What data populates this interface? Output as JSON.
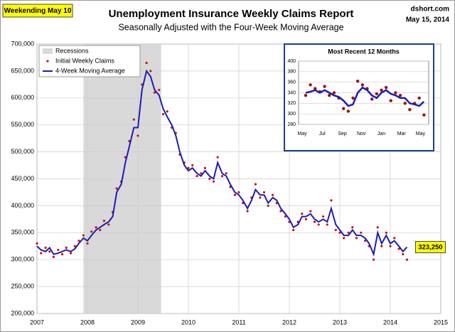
{
  "chart_data": [
    {
      "type": "line",
      "title": "Unemployment Insurance Weekly Claims Report",
      "subtitle": "Seasonally Adjusted with the Four-Week Moving Average",
      "annotations": [
        "Weekending May 10",
        "dshort.com",
        "May 15, 2014"
      ],
      "last_value_label": "323,250",
      "recessions": {
        "name": "Recessions",
        "color": "#d9d9d9",
        "spans": [
          [
            2007.92,
            2009.46
          ]
        ]
      },
      "x": [
        2007,
        2007.08,
        2007.17,
        2007.25,
        2007.33,
        2007.42,
        2007.5,
        2007.58,
        2007.67,
        2007.75,
        2007.83,
        2007.92,
        2008,
        2008.08,
        2008.17,
        2008.25,
        2008.33,
        2008.42,
        2008.5,
        2008.58,
        2008.67,
        2008.75,
        2008.83,
        2008.92,
        2009,
        2009.08,
        2009.17,
        2009.25,
        2009.33,
        2009.42,
        2009.5,
        2009.58,
        2009.67,
        2009.75,
        2009.83,
        2009.92,
        2010,
        2010.08,
        2010.17,
        2010.25,
        2010.33,
        2010.42,
        2010.5,
        2010.58,
        2010.67,
        2010.75,
        2010.83,
        2010.92,
        2011,
        2011.08,
        2011.17,
        2011.25,
        2011.33,
        2011.42,
        2011.5,
        2011.58,
        2011.67,
        2011.75,
        2011.83,
        2011.92,
        2012,
        2012.08,
        2012.17,
        2012.25,
        2012.33,
        2012.42,
        2012.5,
        2012.58,
        2012.67,
        2012.75,
        2012.83,
        2012.92,
        2013,
        2013.08,
        2013.17,
        2013.25,
        2013.33,
        2013.42,
        2013.5,
        2013.58,
        2013.67,
        2013.75,
        2013.83,
        2013.92,
        2014,
        2014.08,
        2014.17,
        2014.25,
        2014.33
      ],
      "series": [
        {
          "name": "Initial Weekly Claims",
          "style": "dots",
          "color": "#cc1010",
          "values": [
            330000,
            312000,
            322000,
            315000,
            305000,
            318000,
            310000,
            322000,
            312000,
            325000,
            335000,
            345000,
            330000,
            352000,
            360000,
            355000,
            372000,
            365000,
            388000,
            432000,
            445000,
            490000,
            520000,
            560000,
            530000,
            625000,
            665000,
            650000,
            610000,
            615000,
            570000,
            575000,
            545000,
            535000,
            495000,
            480000,
            470000,
            475000,
            455000,
            460000,
            470000,
            450000,
            445000,
            490000,
            455000,
            460000,
            435000,
            420000,
            425000,
            405000,
            390000,
            415000,
            440000,
            415000,
            425000,
            400000,
            420000,
            405000,
            390000,
            380000,
            370000,
            355000,
            370000,
            385000,
            375000,
            390000,
            370000,
            365000,
            380000,
            365000,
            410000,
            355000,
            350000,
            340000,
            350000,
            360000,
            340000,
            350000,
            335000,
            325000,
            300000,
            360000,
            325000,
            350000,
            325000,
            340000,
            320000,
            310000,
            300000
          ]
        },
        {
          "name": "4-Week Moving Average",
          "style": "line",
          "color": "#1c1cb8",
          "values": [
            325000,
            318000,
            315000,
            322000,
            310000,
            312000,
            315000,
            318000,
            315000,
            320000,
            330000,
            340000,
            335000,
            345000,
            355000,
            360000,
            365000,
            370000,
            380000,
            425000,
            440000,
            480000,
            510000,
            545000,
            545000,
            615000,
            650000,
            640000,
            615000,
            605000,
            580000,
            565000,
            550000,
            530000,
            500000,
            475000,
            465000,
            470000,
            460000,
            455000,
            465000,
            455000,
            450000,
            480000,
            460000,
            455000,
            440000,
            425000,
            420000,
            410000,
            395000,
            410000,
            430000,
            420000,
            420000,
            405000,
            415000,
            410000,
            395000,
            385000,
            375000,
            360000,
            365000,
            380000,
            380000,
            385000,
            375000,
            370000,
            375000,
            370000,
            395000,
            365000,
            355000,
            345000,
            345000,
            355000,
            345000,
            345000,
            340000,
            330000,
            310000,
            350000,
            330000,
            345000,
            330000,
            335000,
            325000,
            315000,
            323250
          ]
        }
      ],
      "legend_items": [
        "Recessions",
        "Initial Weekly Claims",
        "4-Week Moving Average"
      ],
      "xlim": [
        2007,
        2015
      ],
      "xticks": [
        2007,
        2008,
        2009,
        2010,
        2011,
        2012,
        2013,
        2014,
        2015
      ],
      "ylim": [
        200000,
        700000
      ],
      "yticks": [
        {
          "value": 200000,
          "label": "200,000"
        },
        {
          "value": 250000,
          "label": "250,000"
        },
        {
          "value": 300000,
          "label": "300,000"
        },
        {
          "value": 350000,
          "label": "350,000"
        },
        {
          "value": 400000,
          "label": "400,000"
        },
        {
          "value": 450000,
          "label": "450,000"
        },
        {
          "value": 500000,
          "label": "500,000"
        },
        {
          "value": 550000,
          "label": "550,000"
        },
        {
          "value": 600000,
          "label": "600,000"
        },
        {
          "value": 650000,
          "label": "650,000"
        },
        {
          "value": 700000,
          "label": "700,000"
        }
      ],
      "grid": true
    },
    {
      "type": "line",
      "title": "Most Recent 12 Months",
      "x": [
        2013.36,
        2013.4,
        2013.44,
        2013.48,
        2013.52,
        2013.56,
        2013.6,
        2013.64,
        2013.68,
        2013.72,
        2013.76,
        2013.8,
        2013.84,
        2013.88,
        2013.92,
        2013.96,
        2014,
        2014.04,
        2014.08,
        2014.12,
        2014.16,
        2014.2,
        2014.24,
        2014.28,
        2014.32,
        2014.36
      ],
      "series": [
        {
          "name": "Initial Weekly Claims",
          "style": "dots",
          "color": "#a01010",
          "values": [
            335,
            355,
            348,
            342,
            352,
            335,
            340,
            330,
            310,
            305,
            330,
            362,
            355,
            348,
            328,
            338,
            345,
            350,
            325,
            340,
            335,
            320,
            308,
            320,
            330,
            298
          ]
        },
        {
          "name": "4-Week Moving Average",
          "style": "line",
          "color": "#1c1cb8",
          "values": [
            340,
            342,
            345,
            340,
            345,
            340,
            335,
            332,
            325,
            315,
            318,
            340,
            350,
            345,
            335,
            330,
            340,
            345,
            338,
            335,
            330,
            330,
            320,
            318,
            315,
            323.25
          ]
        }
      ],
      "xlim": [
        2013.3,
        2014.4
      ],
      "xticks": [
        {
          "value": 2013.33,
          "label": "May"
        },
        {
          "value": 2013.5,
          "label": "Jul"
        },
        {
          "value": 2013.67,
          "label": "Sep"
        },
        {
          "value": 2013.83,
          "label": "Nov"
        },
        {
          "value": 2014,
          "label": "Jan"
        },
        {
          "value": 2014.17,
          "label": "Mar"
        },
        {
          "value": 2014.33,
          "label": "May"
        }
      ],
      "ylim": [
        280,
        400
      ],
      "yticks": [
        280,
        300,
        320,
        340,
        360,
        380,
        400
      ],
      "grid": true
    }
  ]
}
